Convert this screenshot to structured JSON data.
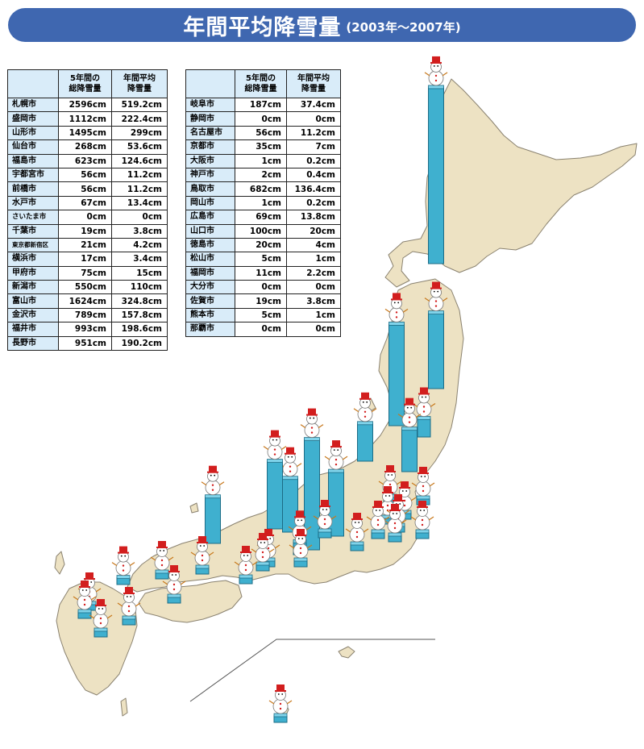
{
  "title": {
    "main": "年間平均降雪量",
    "period": "(2003年～2007年)"
  },
  "table_headers": {
    "total": "5年間の\n総降雪量",
    "average": "年間平均\n降雪量"
  },
  "colors": {
    "title_bar": "#3f67b0",
    "land": "#ede2c3",
    "land_border": "#8a8270",
    "column": "#3fb0cf",
    "table_header": "#d9ecf9",
    "snowman_hat": "#d21e1e"
  },
  "cities_left": [
    {
      "city": "札幌市",
      "total": "2596cm",
      "average": "519.2cm"
    },
    {
      "city": "盛岡市",
      "total": "1112cm",
      "average": "222.4cm"
    },
    {
      "city": "山形市",
      "total": "1495cm",
      "average": "299cm"
    },
    {
      "city": "仙台市",
      "total": "268cm",
      "average": "53.6cm"
    },
    {
      "city": "福島市",
      "total": "623cm",
      "average": "124.6cm"
    },
    {
      "city": "宇都宮市",
      "total": "56cm",
      "average": "11.2cm"
    },
    {
      "city": "前橋市",
      "total": "56cm",
      "average": "11.2cm"
    },
    {
      "city": "水戸市",
      "total": "67cm",
      "average": "13.4cm"
    },
    {
      "city": "さいたま市",
      "total": "0cm",
      "average": "0cm"
    },
    {
      "city": "千葉市",
      "total": "19cm",
      "average": "3.8cm"
    },
    {
      "city": "東京都新宿区",
      "total": "21cm",
      "average": "4.2cm"
    },
    {
      "city": "横浜市",
      "total": "17cm",
      "average": "3.4cm"
    },
    {
      "city": "甲府市",
      "total": "75cm",
      "average": "15cm"
    },
    {
      "city": "新潟市",
      "total": "550cm",
      "average": "110cm"
    },
    {
      "city": "富山市",
      "total": "1624cm",
      "average": "324.8cm"
    },
    {
      "city": "金沢市",
      "total": "789cm",
      "average": "157.8cm"
    },
    {
      "city": "福井市",
      "total": "993cm",
      "average": "198.6cm"
    },
    {
      "city": "長野市",
      "total": "951cm",
      "average": "190.2cm"
    }
  ],
  "cities_right": [
    {
      "city": "岐阜市",
      "total": "187cm",
      "average": "37.4cm"
    },
    {
      "city": "静岡市",
      "total": "0cm",
      "average": "0cm"
    },
    {
      "city": "名古屋市",
      "total": "56cm",
      "average": "11.2cm"
    },
    {
      "city": "京都市",
      "total": "35cm",
      "average": "7cm"
    },
    {
      "city": "大阪市",
      "total": "1cm",
      "average": "0.2cm"
    },
    {
      "city": "神戸市",
      "total": "2cm",
      "average": "0.4cm"
    },
    {
      "city": "鳥取市",
      "total": "682cm",
      "average": "136.4cm"
    },
    {
      "city": "岡山市",
      "total": "1cm",
      "average": "0.2cm"
    },
    {
      "city": "広島市",
      "total": "69cm",
      "average": "13.8cm"
    },
    {
      "city": "山口市",
      "total": "100cm",
      "average": "20cm"
    },
    {
      "city": "徳島市",
      "total": "20cm",
      "average": "4cm"
    },
    {
      "city": "松山市",
      "total": "5cm",
      "average": "1cm"
    },
    {
      "city": "福岡市",
      "total": "11cm",
      "average": "2.2cm"
    },
    {
      "city": "大分市",
      "total": "0cm",
      "average": "0cm"
    },
    {
      "city": "佐賀市",
      "total": "19cm",
      "average": "3.8cm"
    },
    {
      "city": "熊本市",
      "total": "5cm",
      "average": "1cm"
    },
    {
      "city": "那覇市",
      "total": "0cm",
      "average": "0cm"
    }
  ]
}
